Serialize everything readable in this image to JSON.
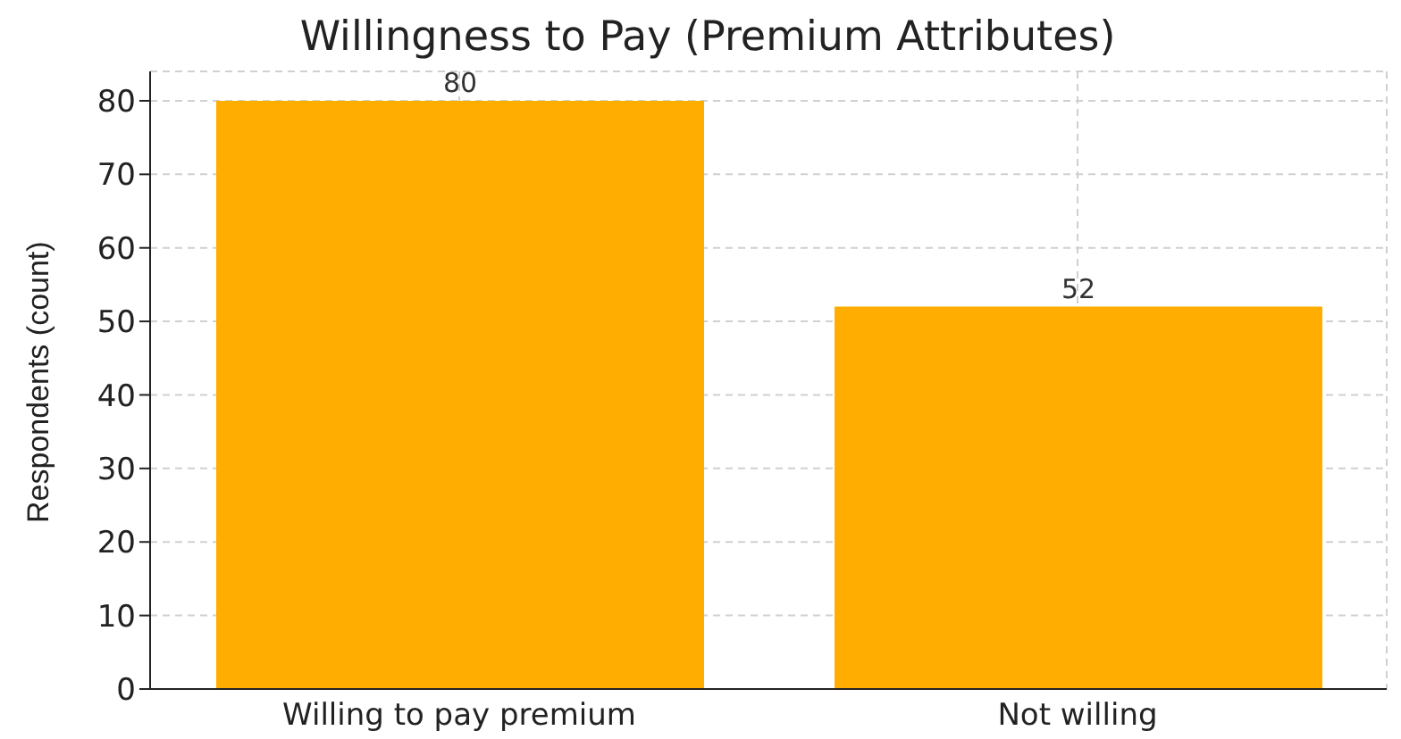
{
  "chart_data": {
    "type": "bar",
    "title": "Willingness to Pay (Premium Attributes)",
    "ylabel": "Respondents (count)",
    "categories": [
      "Willing to pay premium",
      "Not willing"
    ],
    "values": [
      80,
      52
    ],
    "color": "#ffad00",
    "ylim": [
      0,
      84
    ],
    "yticks": [
      0,
      10,
      20,
      30,
      40,
      50,
      60,
      70,
      80
    ],
    "grid": true,
    "data_labels": true
  }
}
